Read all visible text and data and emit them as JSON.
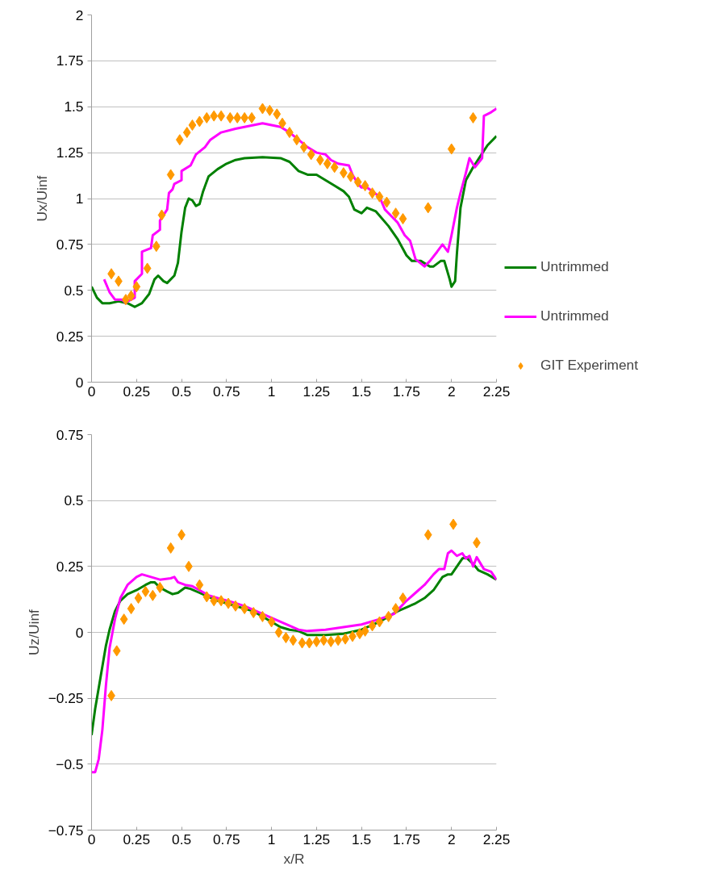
{
  "chart_data": [
    {
      "type": "line",
      "ylabel": "Ux/Uinf",
      "xlim": [
        0,
        2.25
      ],
      "ylim": [
        0,
        2
      ],
      "xticks": [
        0,
        0.25,
        0.5,
        0.75,
        1,
        1.25,
        1.5,
        1.75,
        2,
        2.25
      ],
      "yticks": [
        0,
        0.25,
        0.5,
        0.75,
        1,
        1.25,
        1.5,
        1.75,
        2
      ],
      "grid": "y",
      "legend": "right",
      "series": [
        {
          "name": "Untrimmed",
          "color": "#008000",
          "x": [
            0,
            0.03,
            0.06,
            0.1,
            0.15,
            0.2,
            0.24,
            0.28,
            0.32,
            0.35,
            0.37,
            0.4,
            0.42,
            0.46,
            0.48,
            0.5,
            0.52,
            0.54,
            0.56,
            0.58,
            0.6,
            0.62,
            0.65,
            0.7,
            0.75,
            0.8,
            0.85,
            0.95,
            1.05,
            1.1,
            1.15,
            1.2,
            1.25,
            1.3,
            1.35,
            1.4,
            1.43,
            1.46,
            1.5,
            1.53,
            1.58,
            1.65,
            1.7,
            1.75,
            1.78,
            1.83,
            1.88,
            1.9,
            1.94,
            1.96,
            1.99,
            2.0,
            2.02,
            2.03,
            2.05,
            2.08,
            2.12,
            2.16,
            2.2,
            2.25
          ],
          "values": [
            0.52,
            0.46,
            0.43,
            0.43,
            0.44,
            0.43,
            0.41,
            0.43,
            0.48,
            0.56,
            0.58,
            0.55,
            0.54,
            0.58,
            0.65,
            0.82,
            0.95,
            1.0,
            0.99,
            0.96,
            0.97,
            1.04,
            1.12,
            1.16,
            1.19,
            1.21,
            1.22,
            1.225,
            1.22,
            1.2,
            1.15,
            1.13,
            1.13,
            1.1,
            1.07,
            1.04,
            1.01,
            0.94,
            0.92,
            0.95,
            0.93,
            0.85,
            0.78,
            0.69,
            0.66,
            0.66,
            0.63,
            0.63,
            0.66,
            0.66,
            0.56,
            0.52,
            0.55,
            0.7,
            0.95,
            1.1,
            1.17,
            1.23,
            1.29,
            1.34
          ]
        },
        {
          "name": "Untrimmed",
          "color": "#ff00ff",
          "x": [
            0.07,
            0.1,
            0.13,
            0.17,
            0.19,
            0.2,
            0.22,
            0.24,
            0.24,
            0.28,
            0.28,
            0.33,
            0.34,
            0.38,
            0.38,
            0.42,
            0.43,
            0.45,
            0.46,
            0.5,
            0.5,
            0.55,
            0.58,
            0.63,
            0.66,
            0.72,
            0.8,
            0.9,
            0.95,
            1.0,
            1.05,
            1.1,
            1.15,
            1.2,
            1.25,
            1.3,
            1.33,
            1.37,
            1.43,
            1.45,
            1.48,
            1.5,
            1.53,
            1.56,
            1.6,
            1.63,
            1.67,
            1.7,
            1.74,
            1.77,
            1.8,
            1.85,
            1.88,
            1.92,
            1.95,
            1.98,
            2.0,
            2.03,
            2.05,
            2.08,
            2.1,
            2.13,
            2.17,
            2.18,
            2.22,
            2.25
          ],
          "values": [
            0.56,
            0.49,
            0.45,
            0.45,
            0.43,
            0.44,
            0.45,
            0.46,
            0.55,
            0.59,
            0.71,
            0.73,
            0.8,
            0.83,
            0.88,
            0.94,
            1.03,
            1.05,
            1.08,
            1.1,
            1.15,
            1.18,
            1.24,
            1.28,
            1.32,
            1.36,
            1.38,
            1.4,
            1.41,
            1.4,
            1.39,
            1.36,
            1.32,
            1.28,
            1.25,
            1.24,
            1.21,
            1.19,
            1.18,
            1.13,
            1.08,
            1.06,
            1.06,
            1.04,
            1.01,
            0.94,
            0.9,
            0.87,
            0.8,
            0.77,
            0.67,
            0.63,
            0.66,
            0.71,
            0.75,
            0.71,
            0.8,
            0.95,
            1.03,
            1.14,
            1.22,
            1.17,
            1.22,
            1.45,
            1.47,
            1.49
          ]
        },
        {
          "name": "GIT Experiment",
          "type": "scatter",
          "marker": "diamond",
          "color": "#ff9900",
          "x": [
            0.11,
            0.15,
            0.19,
            0.22,
            0.25,
            0.31,
            0.36,
            0.39,
            0.44,
            0.49,
            0.53,
            0.56,
            0.6,
            0.64,
            0.68,
            0.72,
            0.77,
            0.81,
            0.85,
            0.89,
            0.95,
            0.99,
            1.03,
            1.06,
            1.1,
            1.14,
            1.18,
            1.22,
            1.27,
            1.31,
            1.35,
            1.4,
            1.44,
            1.48,
            1.52,
            1.56,
            1.6,
            1.64,
            1.69,
            1.73,
            1.87,
            2.0,
            2.12
          ],
          "values": [
            0.59,
            0.55,
            0.45,
            0.47,
            0.52,
            0.62,
            0.74,
            0.91,
            1.13,
            1.32,
            1.36,
            1.4,
            1.42,
            1.44,
            1.45,
            1.45,
            1.44,
            1.44,
            1.44,
            1.44,
            1.49,
            1.48,
            1.46,
            1.41,
            1.36,
            1.32,
            1.28,
            1.24,
            1.21,
            1.19,
            1.17,
            1.14,
            1.12,
            1.09,
            1.07,
            1.03,
            1.01,
            0.98,
            0.92,
            0.89,
            0.95,
            1.27,
            1.44
          ]
        }
      ]
    },
    {
      "type": "line",
      "xlabel": "x/R",
      "ylabel": "Uz/Uinf",
      "xlim": [
        0,
        2.25
      ],
      "ylim": [
        -0.75,
        0.75
      ],
      "xticks": [
        0,
        0.25,
        0.5,
        0.75,
        1,
        1.25,
        1.5,
        1.75,
        2,
        2.25
      ],
      "yticks": [
        -0.75,
        -0.5,
        -0.25,
        0,
        0.25,
        0.5,
        0.75
      ],
      "grid": "y",
      "series": [
        {
          "color": "#008000",
          "x": [
            0,
            0.02,
            0.05,
            0.08,
            0.1,
            0.13,
            0.16,
            0.2,
            0.25,
            0.3,
            0.33,
            0.35,
            0.38,
            0.42,
            0.45,
            0.48,
            0.52,
            0.55,
            0.6,
            0.65,
            0.7,
            0.8,
            0.9,
            1.0,
            1.05,
            1.1,
            1.15,
            1.2,
            1.3,
            1.4,
            1.5,
            1.6,
            1.7,
            1.8,
            1.85,
            1.9,
            1.95,
            1.98,
            2.0,
            2.03,
            2.06,
            2.08,
            2.12,
            2.15,
            2.2,
            2.25
          ],
          "values": [
            -0.39,
            -0.29,
            -0.17,
            -0.05,
            0.01,
            0.08,
            0.12,
            0.145,
            0.16,
            0.18,
            0.19,
            0.19,
            0.17,
            0.155,
            0.145,
            0.15,
            0.17,
            0.165,
            0.15,
            0.135,
            0.12,
            0.1,
            0.08,
            0.04,
            0.02,
            0.01,
            0.005,
            -0.01,
            -0.01,
            -0.005,
            0.01,
            0.04,
            0.08,
            0.11,
            0.13,
            0.16,
            0.21,
            0.22,
            0.22,
            0.25,
            0.28,
            0.285,
            0.26,
            0.235,
            0.22,
            0.2
          ]
        },
        {
          "color": "#ff00ff",
          "x": [
            0,
            0.02,
            0.04,
            0.06,
            0.08,
            0.1,
            0.13,
            0.16,
            0.2,
            0.25,
            0.28,
            0.33,
            0.38,
            0.44,
            0.46,
            0.48,
            0.52,
            0.56,
            0.6,
            0.65,
            0.7,
            0.78,
            0.85,
            0.95,
            1.05,
            1.15,
            1.2,
            1.3,
            1.4,
            1.5,
            1.6,
            1.68,
            1.75,
            1.8,
            1.85,
            1.9,
            1.93,
            1.96,
            1.98,
            2.0,
            2.03,
            2.06,
            2.08,
            2.1,
            2.12,
            2.14,
            2.18,
            2.22,
            2.25
          ],
          "values": [
            -0.53,
            -0.53,
            -0.48,
            -0.37,
            -0.2,
            -0.06,
            0.05,
            0.13,
            0.18,
            0.21,
            0.22,
            0.21,
            0.2,
            0.205,
            0.21,
            0.19,
            0.18,
            0.175,
            0.16,
            0.14,
            0.13,
            0.115,
            0.1,
            0.07,
            0.04,
            0.01,
            0.005,
            0.01,
            0.02,
            0.03,
            0.05,
            0.07,
            0.12,
            0.15,
            0.18,
            0.22,
            0.24,
            0.24,
            0.3,
            0.31,
            0.29,
            0.3,
            0.28,
            0.29,
            0.25,
            0.285,
            0.24,
            0.23,
            0.2
          ]
        },
        {
          "type": "scatter",
          "marker": "diamond",
          "color": "#ff9900",
          "x": [
            0.11,
            0.14,
            0.18,
            0.22,
            0.26,
            0.3,
            0.34,
            0.38,
            0.44,
            0.5,
            0.54,
            0.6,
            0.64,
            0.68,
            0.72,
            0.76,
            0.8,
            0.85,
            0.9,
            0.95,
            1.0,
            1.04,
            1.08,
            1.12,
            1.17,
            1.21,
            1.25,
            1.29,
            1.33,
            1.37,
            1.41,
            1.45,
            1.49,
            1.52,
            1.56,
            1.6,
            1.65,
            1.69,
            1.73,
            1.87,
            2.01,
            2.14
          ],
          "values": [
            -0.24,
            -0.07,
            0.05,
            0.09,
            0.13,
            0.155,
            0.14,
            0.17,
            0.32,
            0.37,
            0.25,
            0.18,
            0.135,
            0.12,
            0.12,
            0.11,
            0.1,
            0.09,
            0.075,
            0.06,
            0.04,
            0.0,
            -0.02,
            -0.03,
            -0.04,
            -0.04,
            -0.035,
            -0.03,
            -0.035,
            -0.03,
            -0.025,
            -0.015,
            -0.005,
            0.005,
            0.025,
            0.04,
            0.06,
            0.09,
            0.13,
            0.37,
            0.41,
            0.34
          ]
        }
      ]
    }
  ]
}
